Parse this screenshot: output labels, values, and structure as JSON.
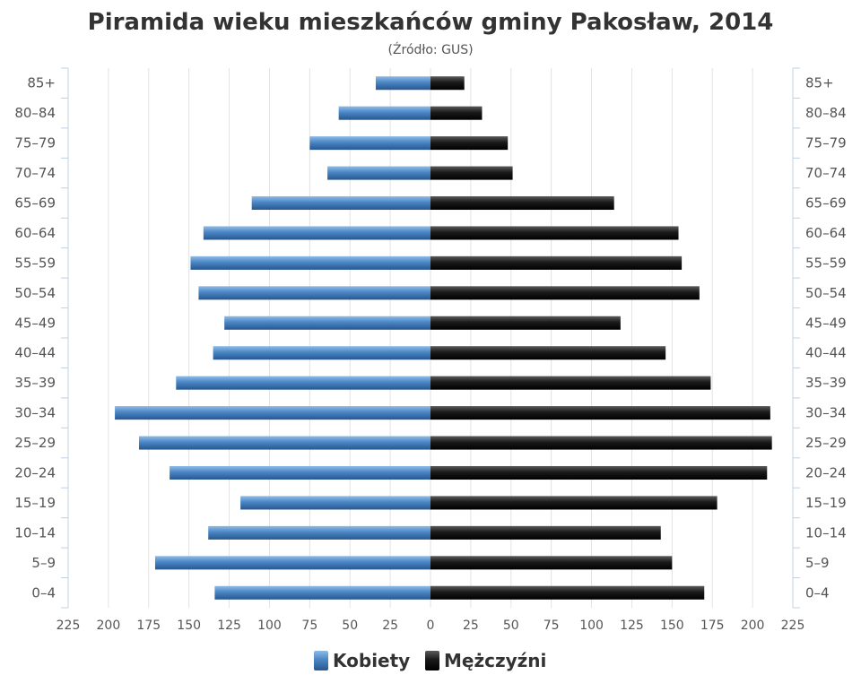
{
  "chart_data": {
    "type": "bar",
    "title": "Piramida wieku mieszkańców gminy Pakosław, 2014",
    "subtitle": "(Źródło: GUS)",
    "categories": [
      "85+",
      "80–84",
      "75–79",
      "70–74",
      "65–69",
      "60–64",
      "55–59",
      "50–54",
      "45–49",
      "40–44",
      "35–39",
      "30–34",
      "25–29",
      "20–24",
      "15–19",
      "10–14",
      "5–9",
      "0–4"
    ],
    "series": [
      {
        "name": "Kobiety",
        "color": "#4a86c5",
        "values": [
          34,
          57,
          75,
          64,
          111,
          141,
          149,
          144,
          128,
          135,
          158,
          196,
          181,
          162,
          118,
          138,
          171,
          134
        ]
      },
      {
        "name": "Mężczyźni",
        "color": "#1a1a1a",
        "values": [
          21,
          32,
          48,
          51,
          114,
          154,
          156,
          167,
          118,
          146,
          174,
          211,
          212,
          209,
          178,
          143,
          150,
          170
        ]
      }
    ],
    "xlim": [
      -225,
      225
    ],
    "xticks": [
      -225,
      -200,
      -175,
      -150,
      -125,
      -100,
      -75,
      -50,
      -25,
      0,
      25,
      50,
      75,
      100,
      125,
      150,
      175,
      200,
      225
    ],
    "xtick_labels": [
      "225",
      "200",
      "175",
      "150",
      "125",
      "100",
      "75",
      "50",
      "25",
      "0",
      "25",
      "50",
      "75",
      "100",
      "125",
      "150",
      "175",
      "200",
      "225"
    ],
    "orientation": "horizontal",
    "grid": true,
    "legend": "bottom"
  }
}
